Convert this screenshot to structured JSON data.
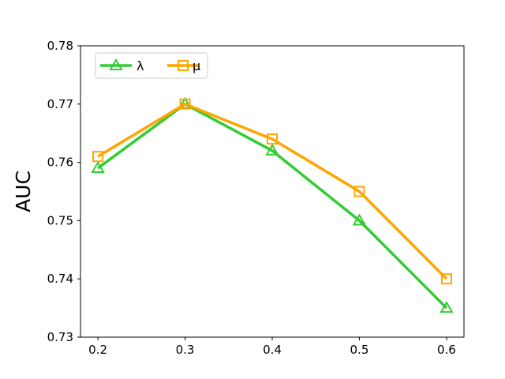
{
  "chart_data": {
    "type": "line",
    "x": [
      0.2,
      0.3,
      0.4,
      0.5,
      0.6
    ],
    "x_tick_labels": [
      "0.2",
      "0.3",
      "0.4",
      "0.5",
      "0.6"
    ],
    "y_tick_values": [
      0.73,
      0.74,
      0.75,
      0.76,
      0.77,
      0.78
    ],
    "y_tick_labels": [
      "0.73",
      "0.74",
      "0.75",
      "0.76",
      "0.77",
      "0.78"
    ],
    "xlim": [
      0.18,
      0.62
    ],
    "ylim": [
      0.73,
      0.78
    ],
    "xlabel": "",
    "ylabel": "AUC",
    "grid": false,
    "legend_position": "top-left",
    "series": [
      {
        "name": "λ",
        "values": [
          0.759,
          0.77,
          0.762,
          0.75,
          0.735
        ],
        "color": "#33cc33",
        "marker": "triangle"
      },
      {
        "name": "μ",
        "values": [
          0.761,
          0.77,
          0.764,
          0.755,
          0.74
        ],
        "color": "#ffa500",
        "marker": "square"
      }
    ]
  }
}
